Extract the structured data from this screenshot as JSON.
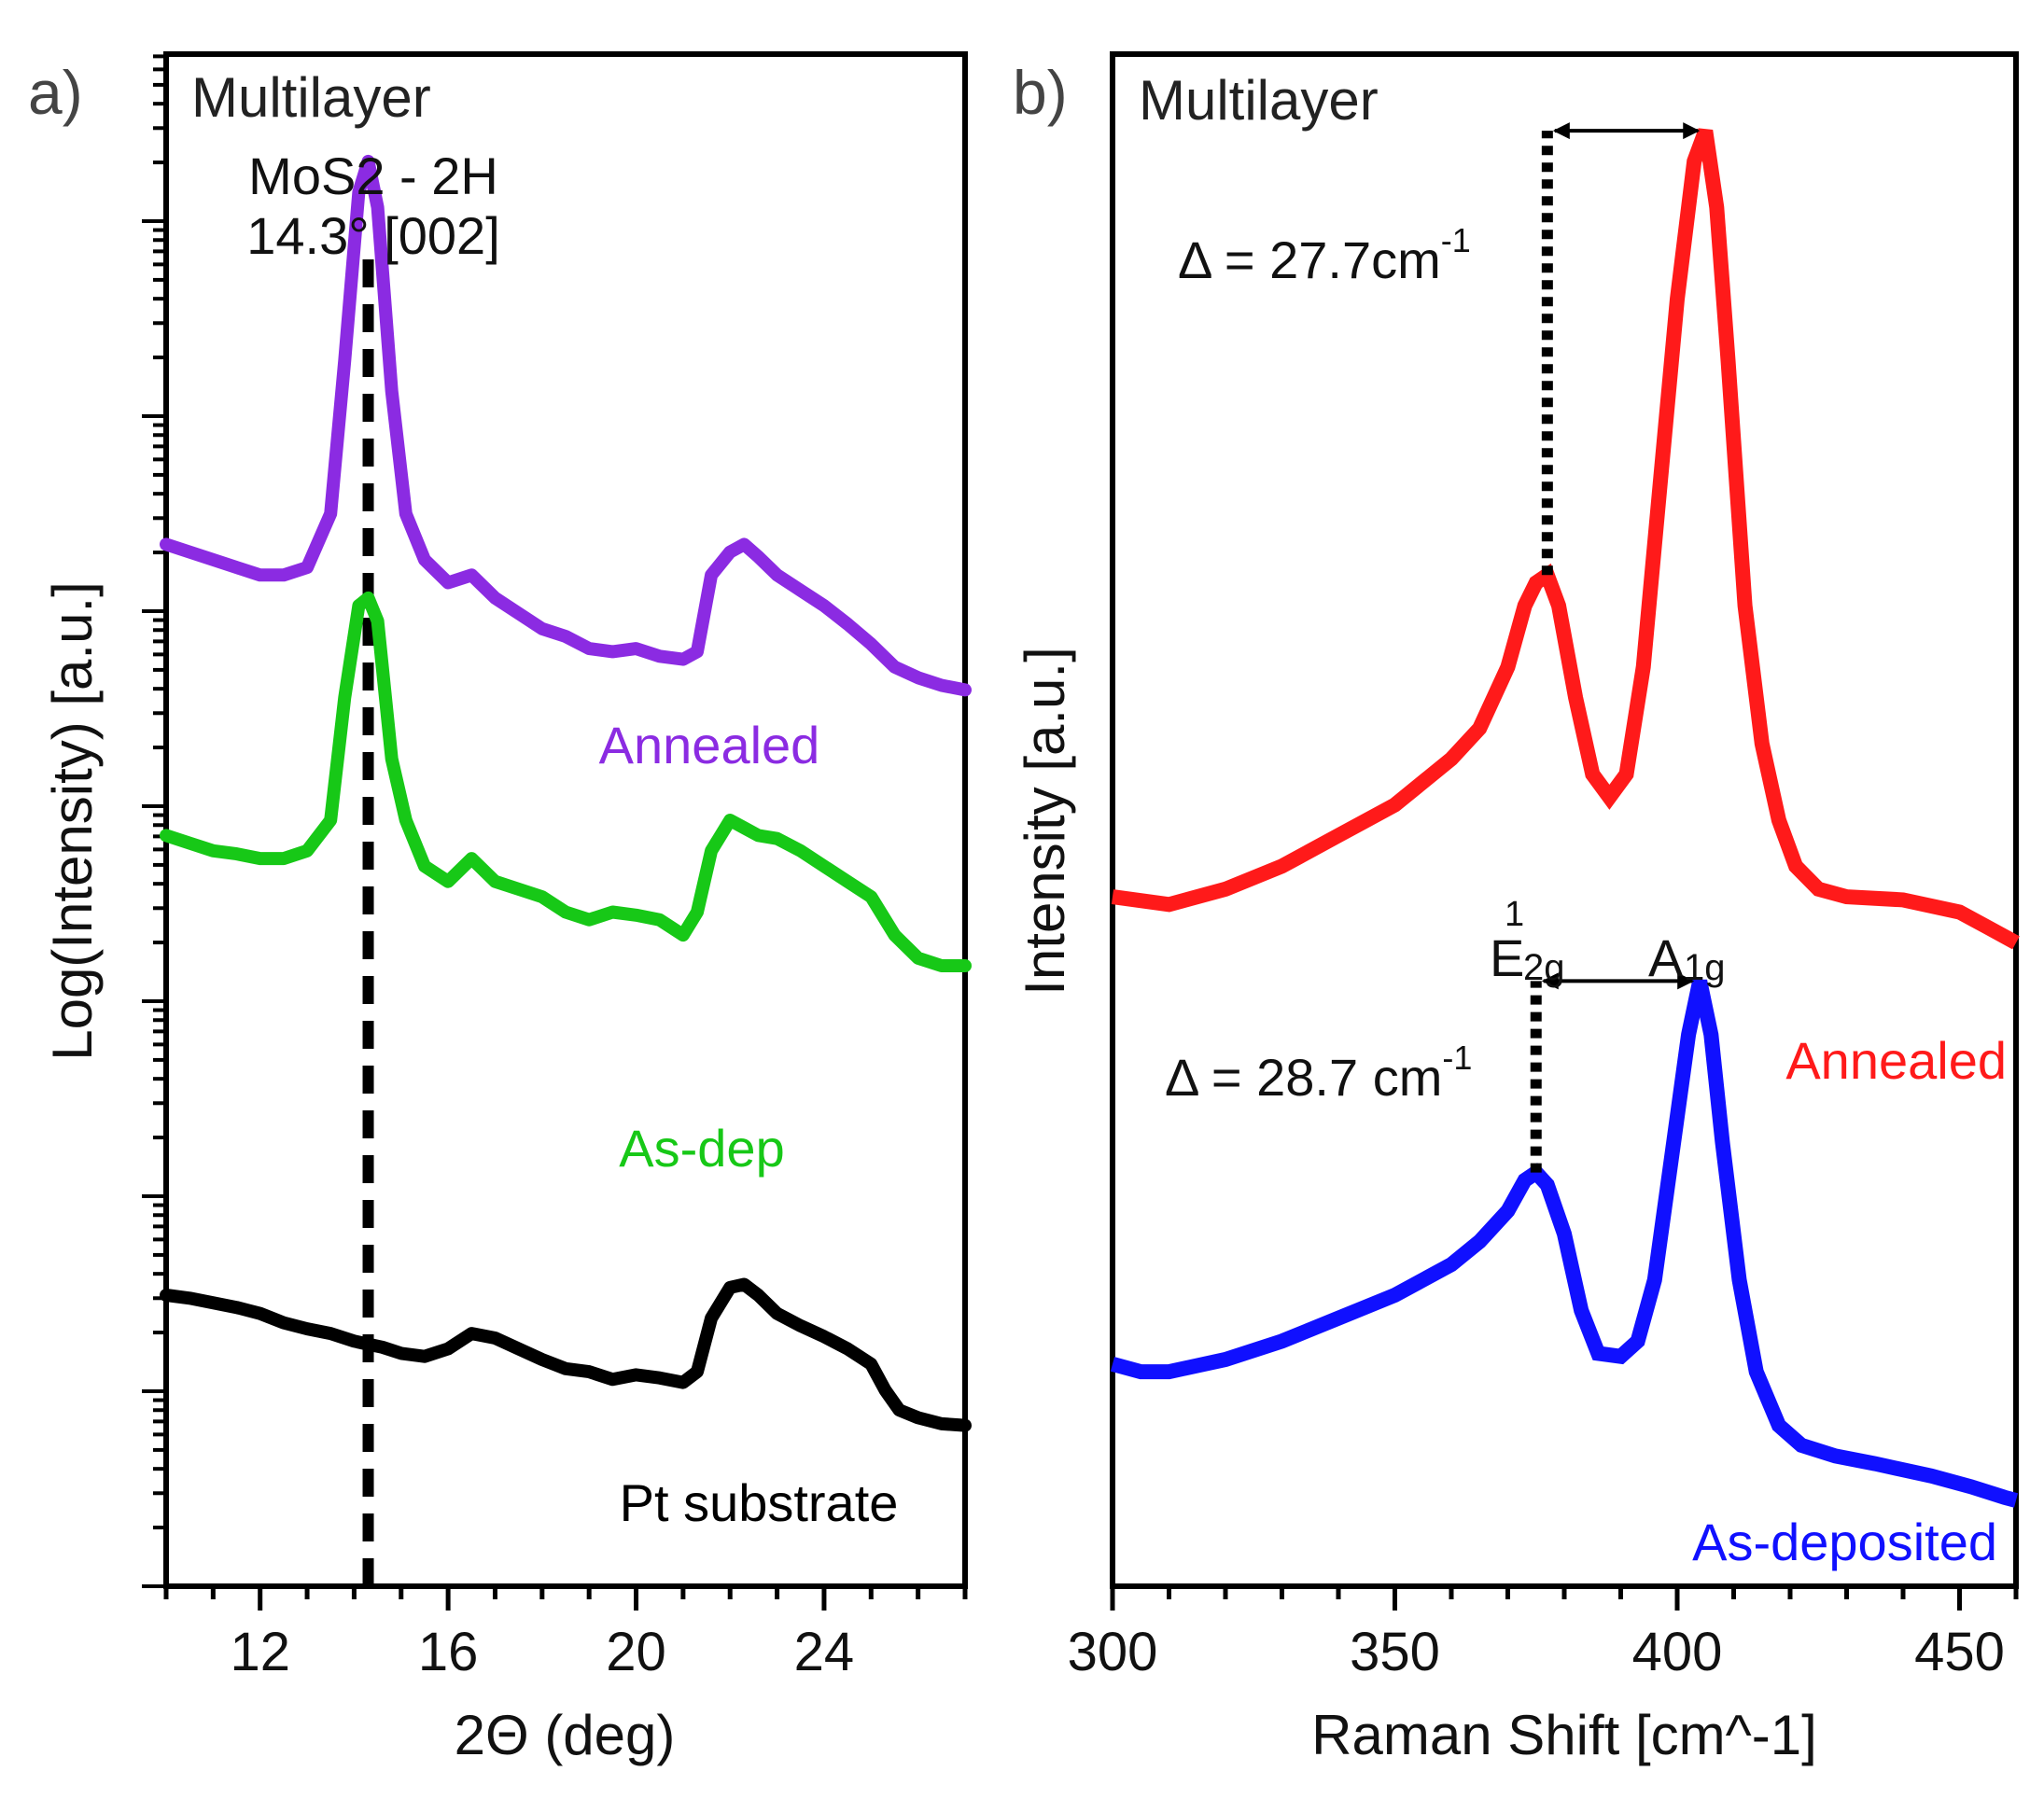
{
  "chart_data": [
    {
      "panel": "a)",
      "type": "line",
      "corner_label": "Multilayer",
      "xlabel": "2Θ (deg)",
      "ylabel": "Log(Intensity) [a.u.]",
      "xlim": [
        10,
        27
      ],
      "x_ticks": [
        12,
        16,
        20,
        24
      ],
      "y_scale": "log (unlabeled ticks)",
      "peak_annotation": {
        "line1": "MoS2 - 2H",
        "line2": "14.3° [002]",
        "x": 14.3
      },
      "legend_placement": "labels beneath each curve",
      "series": [
        {
          "name": "Annealed",
          "color": "#8b2be2",
          "points": [
            [
              10,
              0.68
            ],
            [
              10.5,
              0.675
            ],
            [
              11,
              0.67
            ],
            [
              11.5,
              0.665
            ],
            [
              12,
              0.66
            ],
            [
              12.5,
              0.66
            ],
            [
              13,
              0.665
            ],
            [
              13.5,
              0.7
            ],
            [
              13.8,
              0.8
            ],
            [
              14.1,
              0.91
            ],
            [
              14.3,
              0.93
            ],
            [
              14.5,
              0.9
            ],
            [
              14.8,
              0.78
            ],
            [
              15.1,
              0.7
            ],
            [
              15.5,
              0.67
            ],
            [
              16,
              0.655
            ],
            [
              16.5,
              0.66
            ],
            [
              17,
              0.645
            ],
            [
              17.5,
              0.635
            ],
            [
              18,
              0.625
            ],
            [
              18.5,
              0.62
            ],
            [
              19,
              0.612
            ],
            [
              19.5,
              0.61
            ],
            [
              20,
              0.612
            ],
            [
              20.5,
              0.607
            ],
            [
              21,
              0.605
            ],
            [
              21.3,
              0.61
            ],
            [
              21.6,
              0.66
            ],
            [
              22,
              0.675
            ],
            [
              22.3,
              0.68
            ],
            [
              22.6,
              0.672
            ],
            [
              23,
              0.66
            ],
            [
              23.5,
              0.65
            ],
            [
              24,
              0.64
            ],
            [
              24.5,
              0.628
            ],
            [
              25,
              0.615
            ],
            [
              25.5,
              0.6
            ],
            [
              26,
              0.593
            ],
            [
              26.5,
              0.588
            ],
            [
              27,
              0.585
            ]
          ]
        },
        {
          "name": "As-dep",
          "color": "#17c817",
          "points": [
            [
              10,
              0.49
            ],
            [
              10.5,
              0.485
            ],
            [
              11,
              0.48
            ],
            [
              11.5,
              0.478
            ],
            [
              12,
              0.475
            ],
            [
              12.5,
              0.475
            ],
            [
              13,
              0.48
            ],
            [
              13.5,
              0.5
            ],
            [
              13.8,
              0.58
            ],
            [
              14.1,
              0.64
            ],
            [
              14.3,
              0.645
            ],
            [
              14.5,
              0.63
            ],
            [
              14.8,
              0.54
            ],
            [
              15.1,
              0.5
            ],
            [
              15.5,
              0.47
            ],
            [
              16,
              0.46
            ],
            [
              16.5,
              0.475
            ],
            [
              17,
              0.46
            ],
            [
              17.5,
              0.455
            ],
            [
              18,
              0.45
            ],
            [
              18.5,
              0.44
            ],
            [
              19,
              0.435
            ],
            [
              19.5,
              0.44
            ],
            [
              20,
              0.438
            ],
            [
              20.5,
              0.435
            ],
            [
              21,
              0.425
            ],
            [
              21.3,
              0.44
            ],
            [
              21.6,
              0.48
            ],
            [
              22,
              0.5
            ],
            [
              22.3,
              0.495
            ],
            [
              22.6,
              0.49
            ],
            [
              23,
              0.488
            ],
            [
              23.5,
              0.48
            ],
            [
              24,
              0.47
            ],
            [
              24.5,
              0.46
            ],
            [
              25,
              0.45
            ],
            [
              25.5,
              0.425
            ],
            [
              26,
              0.41
            ],
            [
              26.5,
              0.405
            ],
            [
              27,
              0.405
            ]
          ]
        },
        {
          "name": "Pt substrate",
          "color": "#000000",
          "points": [
            [
              10,
              0.19
            ],
            [
              10.5,
              0.188
            ],
            [
              11,
              0.185
            ],
            [
              11.5,
              0.182
            ],
            [
              12,
              0.178
            ],
            [
              12.5,
              0.172
            ],
            [
              13,
              0.168
            ],
            [
              13.5,
              0.165
            ],
            [
              14,
              0.16
            ],
            [
              14.3,
              0.158
            ],
            [
              14.6,
              0.156
            ],
            [
              15,
              0.152
            ],
            [
              15.5,
              0.15
            ],
            [
              16,
              0.155
            ],
            [
              16.5,
              0.165
            ],
            [
              17,
              0.162
            ],
            [
              17.5,
              0.155
            ],
            [
              18,
              0.148
            ],
            [
              18.5,
              0.142
            ],
            [
              19,
              0.14
            ],
            [
              19.5,
              0.135
            ],
            [
              20,
              0.138
            ],
            [
              20.5,
              0.136
            ],
            [
              21,
              0.133
            ],
            [
              21.3,
              0.14
            ],
            [
              21.6,
              0.175
            ],
            [
              22,
              0.195
            ],
            [
              22.3,
              0.197
            ],
            [
              22.6,
              0.19
            ],
            [
              23,
              0.178
            ],
            [
              23.5,
              0.17
            ],
            [
              24,
              0.163
            ],
            [
              24.5,
              0.155
            ],
            [
              25,
              0.145
            ],
            [
              25.3,
              0.128
            ],
            [
              25.6,
              0.115
            ],
            [
              26,
              0.11
            ],
            [
              26.5,
              0.106
            ],
            [
              27,
              0.105
            ]
          ]
        }
      ]
    },
    {
      "panel": "b)",
      "type": "line",
      "corner_label": "Multilayer",
      "xlabel": "Raman Shift [cm^-1]",
      "ylabel": "Intensity [a.u.]",
      "xlim": [
        300,
        460
      ],
      "x_ticks": [
        300,
        350,
        400,
        450
      ],
      "peak_labels": {
        "E_main": "E",
        "E_sup": "1",
        "E_sub": "2g",
        "A_main": "A",
        "A_sub": "1g"
      },
      "annotations": [
        {
          "text": "Δ = 27.7cm",
          "sup": "-1",
          "from_x": 377,
          "to_x": 405
        },
        {
          "text": "Δ = 28.7 cm",
          "sup": "-1",
          "from_x": 375,
          "to_x": 404
        }
      ],
      "legend_placement": "labels at right of each curve",
      "series": [
        {
          "name": "Annealed",
          "color": "#ff1a1a",
          "points": [
            [
              300,
              0.45
            ],
            [
              310,
              0.445
            ],
            [
              320,
              0.455
            ],
            [
              330,
              0.47
            ],
            [
              340,
              0.49
            ],
            [
              350,
              0.51
            ],
            [
              360,
              0.54
            ],
            [
              365,
              0.56
            ],
            [
              370,
              0.6
            ],
            [
              373,
              0.64
            ],
            [
              375,
              0.655
            ],
            [
              377,
              0.66
            ],
            [
              379,
              0.64
            ],
            [
              382,
              0.58
            ],
            [
              385,
              0.53
            ],
            [
              388,
              0.515
            ],
            [
              391,
              0.53
            ],
            [
              394,
              0.6
            ],
            [
              397,
              0.72
            ],
            [
              400,
              0.84
            ],
            [
              403,
              0.93
            ],
            [
              405,
              0.95
            ],
            [
              407,
              0.9
            ],
            [
              409,
              0.8
            ],
            [
              412,
              0.64
            ],
            [
              415,
              0.55
            ],
            [
              418,
              0.5
            ],
            [
              421,
              0.47
            ],
            [
              425,
              0.455
            ],
            [
              430,
              0.45
            ],
            [
              440,
              0.448
            ],
            [
              450,
              0.44
            ],
            [
              455,
              0.43
            ],
            [
              460,
              0.42
            ]
          ]
        },
        {
          "name": "As-deposited",
          "color": "#1010ff",
          "points": [
            [
              300,
              0.145
            ],
            [
              305,
              0.14
            ],
            [
              310,
              0.14
            ],
            [
              320,
              0.148
            ],
            [
              330,
              0.16
            ],
            [
              340,
              0.175
            ],
            [
              350,
              0.19
            ],
            [
              360,
              0.21
            ],
            [
              365,
              0.225
            ],
            [
              370,
              0.245
            ],
            [
              373,
              0.265
            ],
            [
              375,
              0.27
            ],
            [
              377,
              0.262
            ],
            [
              380,
              0.23
            ],
            [
              383,
              0.18
            ],
            [
              386,
              0.152
            ],
            [
              390,
              0.15
            ],
            [
              393,
              0.16
            ],
            [
              396,
              0.2
            ],
            [
              399,
              0.28
            ],
            [
              402,
              0.36
            ],
            [
              404,
              0.395
            ],
            [
              406,
              0.36
            ],
            [
              408,
              0.29
            ],
            [
              411,
              0.2
            ],
            [
              414,
              0.14
            ],
            [
              418,
              0.105
            ],
            [
              422,
              0.092
            ],
            [
              428,
              0.085
            ],
            [
              435,
              0.08
            ],
            [
              445,
              0.072
            ],
            [
              452,
              0.065
            ],
            [
              458,
              0.058
            ],
            [
              460,
              0.056
            ]
          ]
        }
      ]
    }
  ]
}
